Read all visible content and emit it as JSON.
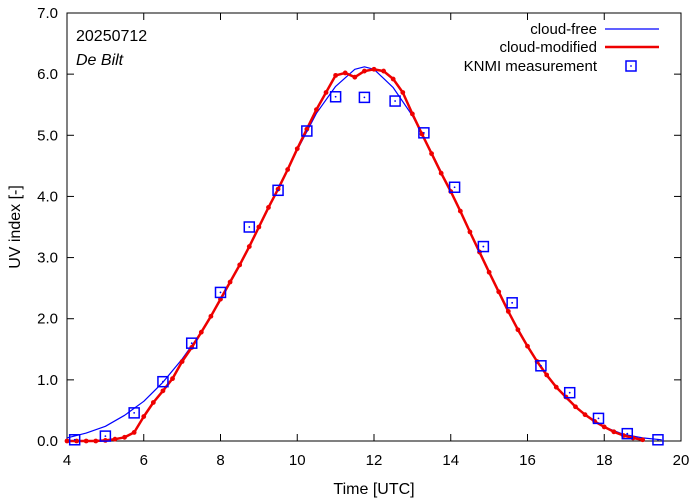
{
  "chart_data": {
    "type": "line",
    "date_label": "20250712",
    "location_label": "De Bilt",
    "xlabel": "Time  [UTC]",
    "ylabel": "UV index  [-]",
    "xlim": [
      4,
      20
    ],
    "ylim": [
      0,
      7
    ],
    "xticks": [
      "4",
      "6",
      "8",
      "10",
      "12",
      "14",
      "16",
      "18",
      "20"
    ],
    "yticks": [
      "0.0",
      "1.0",
      "2.0",
      "3.0",
      "4.0",
      "5.0",
      "6.0",
      "7.0"
    ],
    "legend_position": "top-right",
    "series": [
      {
        "name": "cloud-free",
        "color": "#0000ff",
        "style": "thin-line",
        "x": [
          4.0,
          4.5,
          5.0,
          5.5,
          6.0,
          6.5,
          7.0,
          7.5,
          8.0,
          8.5,
          9.0,
          9.5,
          10.0,
          10.5,
          11.0,
          11.5,
          11.75,
          12.0,
          12.5,
          13.0,
          13.5,
          14.0,
          14.5,
          15.0,
          15.5,
          16.0,
          16.5,
          17.0,
          17.5,
          18.0,
          18.5,
          19.0,
          19.5
        ],
        "y": [
          0.05,
          0.13,
          0.24,
          0.42,
          0.65,
          0.96,
          1.34,
          1.78,
          2.3,
          2.87,
          3.5,
          4.14,
          4.76,
          5.36,
          5.8,
          6.08,
          6.12,
          6.08,
          5.78,
          5.32,
          4.72,
          4.08,
          3.42,
          2.76,
          2.12,
          1.56,
          1.06,
          0.7,
          0.42,
          0.23,
          0.11,
          0.05,
          0.02
        ]
      },
      {
        "name": "cloud-modified",
        "color": "#ee0000",
        "style": "thick-line-dots",
        "x": [
          4.0,
          4.25,
          4.5,
          4.75,
          5.0,
          5.25,
          5.5,
          5.75,
          6.0,
          6.25,
          6.5,
          6.75,
          7.0,
          7.25,
          7.5,
          7.75,
          8.0,
          8.25,
          8.5,
          8.75,
          9.0,
          9.25,
          9.5,
          9.75,
          10.0,
          10.25,
          10.5,
          10.75,
          11.0,
          11.25,
          11.5,
          11.75,
          12.0,
          12.25,
          12.5,
          12.75,
          13.0,
          13.25,
          13.5,
          13.75,
          14.0,
          14.25,
          14.5,
          14.75,
          15.0,
          15.25,
          15.5,
          15.75,
          16.0,
          16.25,
          16.5,
          16.75,
          17.0,
          17.25,
          17.5,
          17.75,
          18.0,
          18.25,
          18.5,
          18.75,
          19.0
        ],
        "y": [
          0.0,
          0.0,
          0.0,
          0.0,
          0.01,
          0.03,
          0.06,
          0.14,
          0.4,
          0.63,
          0.82,
          1.02,
          1.3,
          1.53,
          1.78,
          2.04,
          2.32,
          2.6,
          2.88,
          3.18,
          3.5,
          3.82,
          4.12,
          4.44,
          4.78,
          5.1,
          5.42,
          5.7,
          5.98,
          6.02,
          5.95,
          6.05,
          6.08,
          6.05,
          5.92,
          5.7,
          5.35,
          5.02,
          4.7,
          4.38,
          4.08,
          3.76,
          3.42,
          3.09,
          2.76,
          2.44,
          2.12,
          1.82,
          1.55,
          1.3,
          1.08,
          0.88,
          0.72,
          0.56,
          0.43,
          0.32,
          0.23,
          0.15,
          0.09,
          0.05,
          0.02
        ]
      },
      {
        "name": "KNMI measurement",
        "color": "#0000ff",
        "style": "square-markers",
        "x": [
          4.2,
          5.0,
          5.75,
          6.5,
          7.25,
          8.0,
          8.75,
          9.5,
          10.25,
          11.0,
          11.75,
          12.55,
          13.3,
          14.1,
          14.85,
          15.6,
          16.35,
          17.1,
          17.85,
          18.6,
          19.4
        ],
        "y": [
          0.02,
          0.08,
          0.46,
          0.97,
          1.6,
          2.43,
          3.5,
          4.1,
          5.07,
          5.63,
          5.62,
          5.56,
          5.04,
          4.15,
          3.18,
          2.26,
          1.23,
          0.79,
          0.37,
          0.12,
          0.02
        ]
      }
    ]
  }
}
